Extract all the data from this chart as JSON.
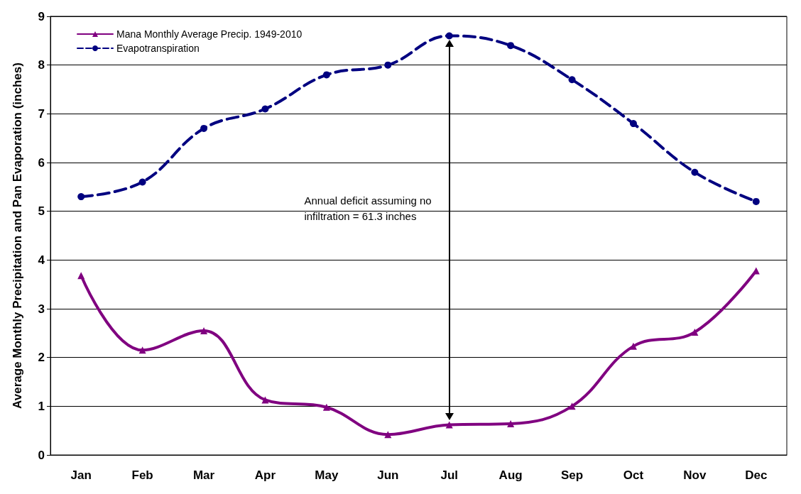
{
  "chart_data": {
    "type": "line",
    "ylabel": "Average Monthly Precipitation and Pan Evaporation (inches)",
    "categories": [
      "Jan",
      "Feb",
      "Mar",
      "Apr",
      "May",
      "Jun",
      "Jul",
      "Aug",
      "Sep",
      "Oct",
      "Nov",
      "Dec"
    ],
    "series": [
      {
        "name": "Mana Monthly Average Precip. 1949-2010",
        "color": "#800080",
        "marker": "triangle",
        "line_style": "solid",
        "values": [
          3.68,
          2.15,
          2.55,
          1.13,
          0.98,
          0.42,
          0.62,
          0.64,
          1.0,
          2.23,
          2.52,
          3.78
        ]
      },
      {
        "name": "Evapotranspiration",
        "color": "#000080",
        "marker": "circle",
        "line_style": "dashed",
        "values": [
          5.3,
          5.6,
          6.7,
          7.1,
          7.8,
          8.0,
          8.6,
          8.4,
          7.7,
          6.8,
          5.8,
          5.2
        ]
      }
    ],
    "ylim": [
      0,
      9
    ],
    "yticks": [
      0,
      1,
      2,
      3,
      4,
      5,
      6,
      7,
      8,
      9
    ],
    "grid": "y",
    "legend": "top left",
    "annotations": [
      "Annual deficit assuming no\ninfiltration = 61.3 inches"
    ]
  }
}
